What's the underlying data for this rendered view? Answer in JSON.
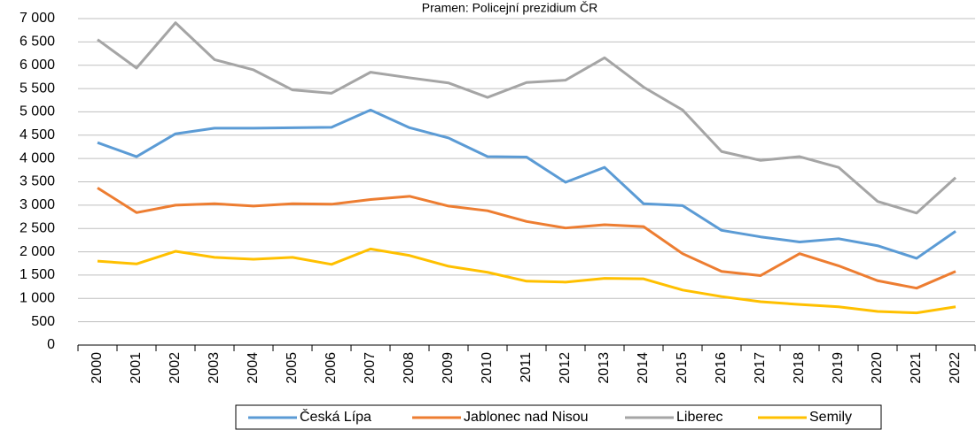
{
  "chart_data": {
    "type": "line",
    "title": "Pramen: Policejní prezidium ČR",
    "categories": [
      "2000",
      "2001",
      "2002",
      "2003",
      "2004",
      "2005",
      "2006",
      "2007",
      "2008",
      "2009",
      "2010",
      "2011",
      "2012",
      "2013",
      "2014",
      "2015",
      "2016",
      "2017",
      "2018",
      "2019",
      "2020",
      "2021",
      "2022"
    ],
    "series": [
      {
        "name": "Česká Lípa",
        "color": "#5b9bd5",
        "values": [
          4340,
          4040,
          4530,
          4650,
          4650,
          4660,
          4670,
          5040,
          4660,
          4440,
          4040,
          4030,
          3490,
          3810,
          3030,
          2990,
          2460,
          2320,
          2210,
          2280,
          2130,
          1860,
          2440
        ]
      },
      {
        "name": "Jablonec nad Nisou",
        "color": "#ed7d31",
        "values": [
          3370,
          2840,
          3000,
          3030,
          2980,
          3030,
          3020,
          3120,
          3190,
          2980,
          2880,
          2650,
          2510,
          2580,
          2540,
          1960,
          1580,
          1490,
          1960,
          1700,
          1380,
          1220,
          1580
        ]
      },
      {
        "name": "Liberec",
        "color": "#a5a5a5",
        "values": [
          6550,
          5940,
          6910,
          6120,
          5900,
          5470,
          5400,
          5850,
          5730,
          5620,
          5310,
          5630,
          5680,
          6160,
          5530,
          5040,
          4150,
          3960,
          4040,
          3810,
          3080,
          2830,
          3590
        ]
      },
      {
        "name": "Semily",
        "color": "#ffc000",
        "values": [
          1800,
          1740,
          2010,
          1880,
          1840,
          1880,
          1730,
          2060,
          1920,
          1690,
          1560,
          1370,
          1350,
          1430,
          1420,
          1180,
          1040,
          930,
          870,
          820,
          720,
          690,
          820
        ]
      }
    ],
    "ylim": [
      0,
      7000
    ],
    "yticks": [
      0,
      500,
      {
        "value": 1000,
        "label": "1 000"
      },
      {
        "value": 1500,
        "label": "1 500"
      },
      {
        "value": 2000,
        "label": "2 000"
      },
      {
        "value": 2500,
        "label": "2 500"
      },
      {
        "value": 3000,
        "label": "3 000"
      },
      {
        "value": 3500,
        "label": "3 500"
      },
      {
        "value": 4000,
        "label": "4 000"
      },
      {
        "value": 4500,
        "label": "4 500"
      },
      {
        "value": 5000,
        "label": "5 000"
      },
      {
        "value": 5500,
        "label": "5 500"
      },
      {
        "value": 6000,
        "label": "6 000"
      },
      {
        "value": 6500,
        "label": "6 500"
      },
      {
        "value": 7000,
        "label": "7 000"
      }
    ],
    "grid": true,
    "legend": "bottom"
  }
}
